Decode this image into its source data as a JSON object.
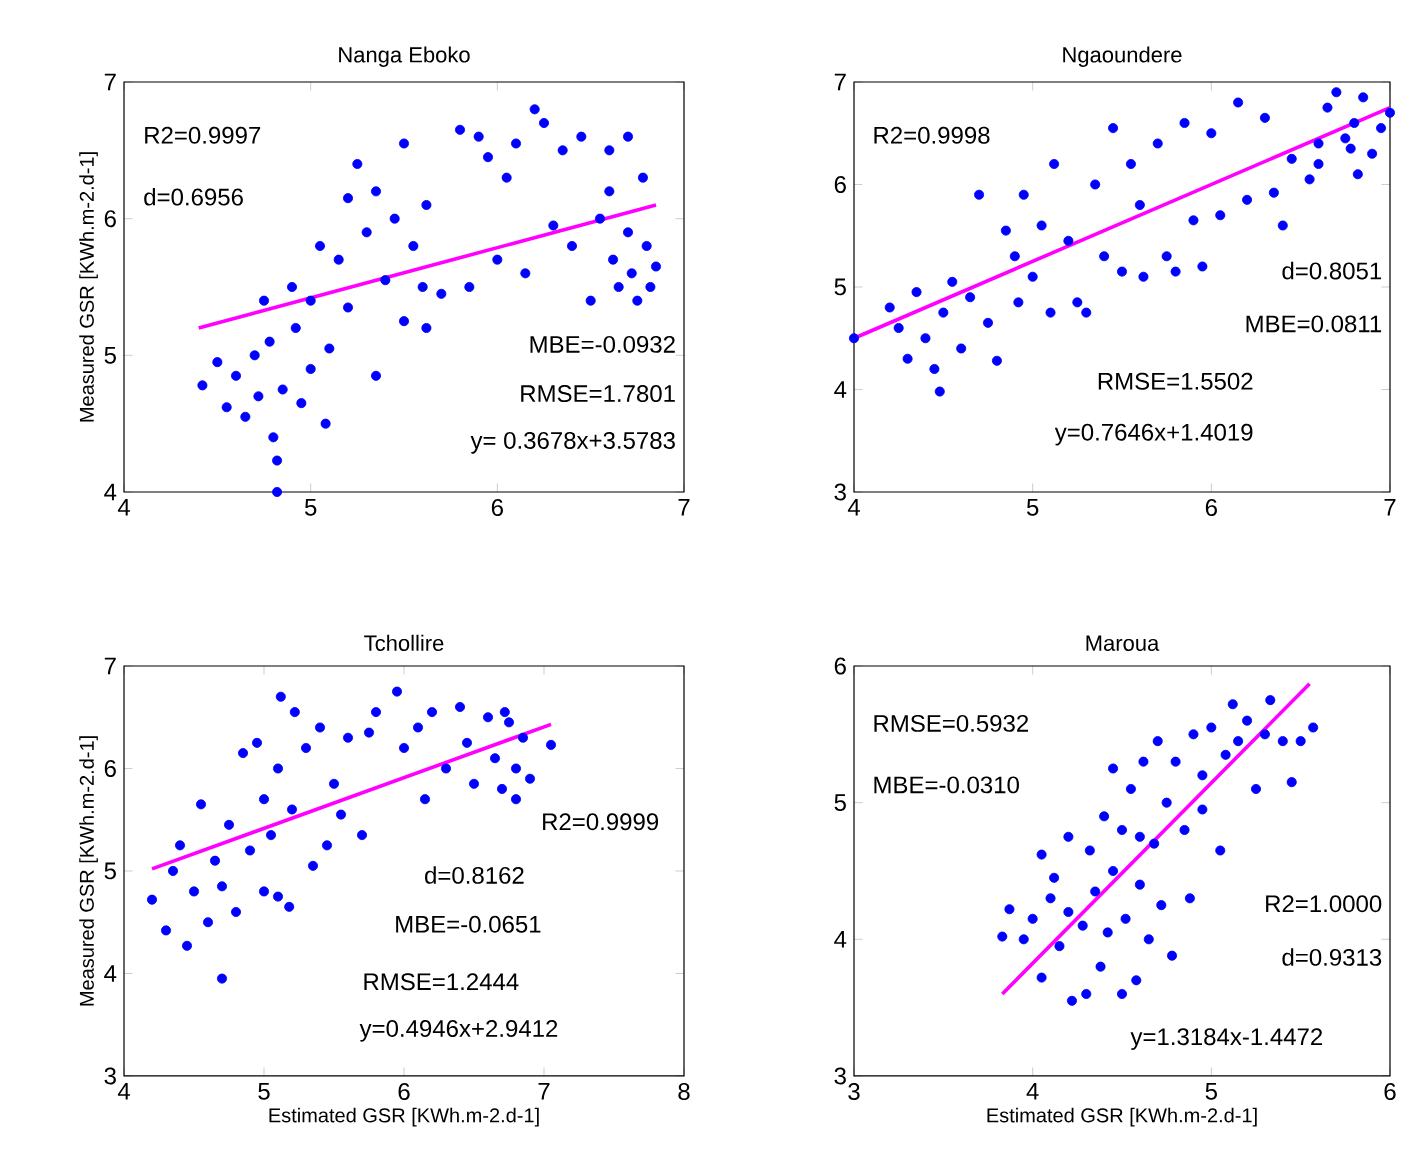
{
  "chart_data": [
    {
      "type": "scatter",
      "title": "Nanga Eboko",
      "ylabel": "Measured GSR [KWh.m-2.d-1]",
      "xlim": [
        4,
        7
      ],
      "ylim": [
        4,
        7
      ],
      "xticks": [
        4,
        5,
        6,
        7
      ],
      "yticks": [
        4,
        5,
        6,
        7
      ],
      "annotations": [
        "R2=0.9997",
        "d=0.6956",
        "MBE=-0.0932",
        "RMSE=1.7801",
        "y= 0.3678x+3.5783"
      ],
      "series": [
        {
          "color": "#0000ff",
          "x": [
            4.42,
            4.5,
            4.55,
            4.6,
            4.65,
            4.7,
            4.72,
            4.75,
            4.78,
            4.8,
            4.82,
            4.82,
            4.85,
            4.9,
            4.92,
            4.95,
            5.0,
            5.0,
            5.05,
            5.08,
            5.1,
            5.15,
            5.2,
            5.2,
            5.25,
            5.3,
            5.35,
            5.35,
            5.4,
            5.45,
            5.5,
            5.5,
            5.55,
            5.6,
            5.62,
            5.62,
            5.8,
            5.85,
            5.9,
            5.95,
            6.0,
            6.05,
            6.1,
            6.15,
            6.2,
            6.25,
            6.35,
            6.4,
            6.45,
            6.5,
            6.55,
            6.6,
            6.62,
            6.65,
            6.7,
            6.72,
            6.75,
            6.78,
            6.8,
            6.82,
            6.85,
            6.7,
            6.6,
            6.3,
            5.7
          ],
          "values": [
            4.78,
            4.95,
            4.62,
            4.85,
            4.55,
            5.0,
            4.7,
            5.4,
            5.1,
            4.4,
            4.23,
            4.0,
            4.75,
            5.5,
            5.2,
            4.65,
            4.9,
            5.4,
            5.8,
            4.5,
            5.05,
            5.7,
            5.35,
            6.15,
            6.4,
            5.9,
            6.2,
            4.85,
            5.55,
            6.0,
            5.25,
            6.55,
            5.8,
            5.5,
            6.1,
            5.2,
            6.65,
            5.5,
            6.6,
            6.45,
            5.7,
            6.3,
            6.55,
            5.6,
            6.8,
            6.7,
            6.5,
            5.8,
            6.6,
            5.4,
            6.0,
            6.5,
            5.7,
            5.5,
            6.6,
            5.6,
            5.4,
            6.3,
            5.8,
            5.5,
            5.65,
            5.9,
            6.2,
            5.95,
            5.45
          ]
        },
        {
          "type": "line",
          "marker": "none",
          "color": "#ff00ff",
          "x": [
            4.4,
            6.85
          ],
          "values": [
            5.2,
            6.1
          ]
        }
      ]
    },
    {
      "type": "scatter",
      "title": "Ngaoundere",
      "xlim": [
        4,
        7
      ],
      "ylim": [
        3,
        7
      ],
      "xticks": [
        4,
        5,
        6,
        7
      ],
      "yticks": [
        3,
        4,
        5,
        6,
        7
      ],
      "annotations": [
        "R2=0.9998",
        "d=0.8051",
        "MBE=0.0811",
        "RMSE=1.5502",
        "y=0.7646x+1.4019"
      ],
      "series": [
        {
          "color": "#0000ff",
          "x": [
            4.0,
            4.2,
            4.25,
            4.3,
            4.35,
            4.4,
            4.45,
            4.48,
            4.5,
            4.55,
            4.6,
            4.65,
            4.7,
            4.75,
            4.8,
            4.85,
            4.9,
            4.92,
            4.95,
            5.0,
            5.05,
            5.1,
            5.12,
            5.2,
            5.25,
            5.3,
            5.35,
            5.4,
            5.45,
            5.5,
            5.55,
            5.6,
            5.62,
            5.7,
            5.75,
            5.8,
            5.85,
            5.9,
            5.95,
            6.0,
            6.05,
            6.15,
            6.2,
            6.3,
            6.35,
            6.4,
            6.45,
            6.55,
            6.6,
            6.65,
            6.7,
            6.75,
            6.8,
            6.82,
            6.85,
            6.9,
            6.95,
            7.0,
            6.6,
            6.78
          ],
          "values": [
            4.5,
            4.8,
            4.6,
            4.3,
            4.95,
            4.5,
            4.2,
            3.98,
            4.75,
            5.05,
            4.4,
            4.9,
            5.9,
            4.65,
            4.28,
            5.55,
            5.3,
            4.85,
            5.9,
            5.1,
            5.6,
            4.75,
            6.2,
            5.45,
            4.85,
            4.75,
            6.0,
            5.3,
            6.55,
            5.15,
            6.2,
            5.8,
            5.1,
            6.4,
            5.3,
            5.15,
            6.6,
            5.65,
            5.2,
            6.5,
            5.7,
            6.8,
            5.85,
            6.65,
            5.92,
            5.6,
            6.25,
            6.05,
            6.4,
            6.75,
            6.9,
            6.45,
            6.6,
            6.1,
            6.85,
            6.3,
            6.55,
            6.7,
            6.2,
            6.35
          ]
        },
        {
          "type": "line",
          "marker": "none",
          "color": "#ff00ff",
          "x": [
            4.0,
            7.0
          ],
          "values": [
            4.5,
            6.75
          ]
        }
      ]
    },
    {
      "type": "scatter",
      "title": "Tchollire",
      "xlabel": "Estimated GSR [KWh.m-2.d-1]",
      "ylabel": "Measured GSR [KWh.m-2.d-1]",
      "xlim": [
        4,
        8
      ],
      "ylim": [
        3,
        7
      ],
      "xticks": [
        4,
        5,
        6,
        7,
        8
      ],
      "yticks": [
        3,
        4,
        5,
        6,
        7
      ],
      "annotations": [
        "R2=0.9999",
        "d=0.8162",
        "MBE=-0.0651",
        "RMSE=1.2444",
        "y=0.4946x+2.9412"
      ],
      "series": [
        {
          "color": "#0000ff",
          "x": [
            4.2,
            4.3,
            4.35,
            4.4,
            4.45,
            4.5,
            4.55,
            4.6,
            4.65,
            4.7,
            4.7,
            4.75,
            4.8,
            4.85,
            4.9,
            4.95,
            5.0,
            5.0,
            5.05,
            5.1,
            5.1,
            5.12,
            5.18,
            5.2,
            5.22,
            5.3,
            5.35,
            5.4,
            5.45,
            5.5,
            5.55,
            5.6,
            5.7,
            5.75,
            5.8,
            5.95,
            6.0,
            6.1,
            6.15,
            6.2,
            6.3,
            6.4,
            6.45,
            6.5,
            6.6,
            6.65,
            6.7,
            6.75,
            6.8,
            6.85,
            6.9,
            7.05,
            6.72,
            6.8
          ],
          "values": [
            4.72,
            4.42,
            5.0,
            5.25,
            4.27,
            4.8,
            5.65,
            4.5,
            5.1,
            3.95,
            4.85,
            5.45,
            4.6,
            6.15,
            5.2,
            6.25,
            5.7,
            4.8,
            5.35,
            6.0,
            4.75,
            6.7,
            4.65,
            5.6,
            6.55,
            6.2,
            5.05,
            6.4,
            5.25,
            5.85,
            5.55,
            6.3,
            5.35,
            6.35,
            6.55,
            6.75,
            6.2,
            6.4,
            5.7,
            6.55,
            6.0,
            6.6,
            6.25,
            5.85,
            6.5,
            6.1,
            5.8,
            6.45,
            6.0,
            6.3,
            5.9,
            6.23,
            6.55,
            5.7
          ]
        },
        {
          "type": "line",
          "marker": "none",
          "color": "#ff00ff",
          "x": [
            4.2,
            7.05
          ],
          "values": [
            5.02,
            6.43
          ]
        }
      ]
    },
    {
      "type": "scatter",
      "title": "Maroua",
      "xlabel": "Estimated GSR [KWh.m-2.d-1]",
      "xlim": [
        3,
        6
      ],
      "ylim": [
        3,
        6
      ],
      "xticks": [
        3,
        4,
        5,
        6
      ],
      "yticks": [
        3,
        4,
        5,
        6
      ],
      "annotations": [
        "RMSE=0.5932",
        "MBE=-0.0310",
        "R2=1.0000",
        "d=0.9313",
        "y=1.3184x-1.4472"
      ],
      "series": [
        {
          "color": "#0000ff",
          "x": [
            3.83,
            3.87,
            3.95,
            4.0,
            4.05,
            4.05,
            4.1,
            4.12,
            4.15,
            4.2,
            4.2,
            4.22,
            4.28,
            4.3,
            4.32,
            4.35,
            4.38,
            4.4,
            4.42,
            4.45,
            4.45,
            4.5,
            4.5,
            4.52,
            4.55,
            4.58,
            4.6,
            4.62,
            4.65,
            4.68,
            4.7,
            4.72,
            4.75,
            4.78,
            4.8,
            4.85,
            4.88,
            4.9,
            4.95,
            5.0,
            5.05,
            5.08,
            5.12,
            5.15,
            5.2,
            5.25,
            5.3,
            5.33,
            5.4,
            5.45,
            5.5,
            5.57,
            4.95,
            4.6
          ],
          "values": [
            4.02,
            4.22,
            4.0,
            4.15,
            3.72,
            4.62,
            4.3,
            4.45,
            3.95,
            4.75,
            4.2,
            3.55,
            4.1,
            3.6,
            4.65,
            4.35,
            3.8,
            4.9,
            4.05,
            5.25,
            4.5,
            3.6,
            4.8,
            4.15,
            5.1,
            3.7,
            4.4,
            5.3,
            4.0,
            4.7,
            5.45,
            4.25,
            5.0,
            3.88,
            5.3,
            4.8,
            4.3,
            5.5,
            5.2,
            5.55,
            4.65,
            5.35,
            5.72,
            5.45,
            5.6,
            5.1,
            5.5,
            5.75,
            5.45,
            5.15,
            5.45,
            5.55,
            4.95,
            4.75
          ]
        },
        {
          "type": "line",
          "marker": "none",
          "color": "#ff00ff",
          "x": [
            3.83,
            5.55
          ],
          "values": [
            3.6,
            5.87
          ]
        }
      ]
    }
  ]
}
